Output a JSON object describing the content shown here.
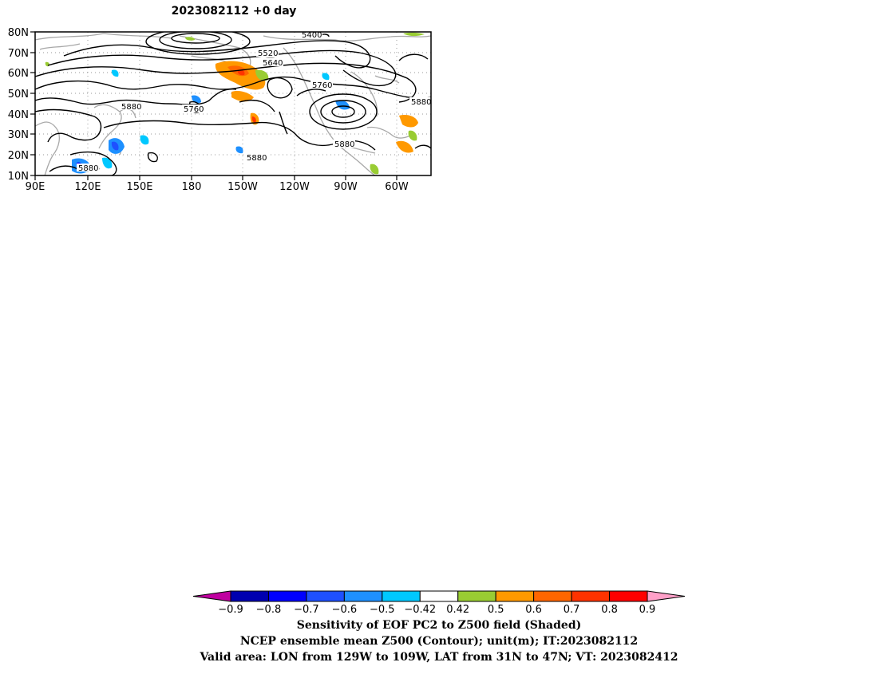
{
  "map": {
    "title": "2023082112 +0 day",
    "lat_labels": [
      "80N",
      "70N",
      "60N",
      "50N",
      "40N",
      "30N",
      "20N",
      "10N"
    ],
    "lon_labels": [
      "90E",
      "120E",
      "150E",
      "180",
      "150W",
      "120W",
      "90W",
      "60W"
    ],
    "contour_labels": [
      "5400",
      "5520",
      "5640",
      "5760",
      "5880",
      "5760",
      "5880",
      "5880",
      "5880",
      "5880"
    ],
    "coastline_color": "#a8a8a8",
    "contour_color": "#000000"
  },
  "colorbar": {
    "colors": [
      "#c000a0",
      "#0000b0",
      "#0000ff",
      "#1e50ff",
      "#1e90ff",
      "#00c8ff",
      "#ffffff",
      "#99cc33",
      "#ff9900",
      "#ff6600",
      "#ff3300",
      "#ff0000",
      "#ffa0c8"
    ],
    "ticks": [
      "−0.9",
      "−0.8",
      "−0.7",
      "−0.6",
      "−0.5",
      "−0.42",
      "0.42",
      "0.5",
      "0.6",
      "0.7",
      "0.8",
      "0.9"
    ]
  },
  "captions": {
    "line1": "Sensitivity of EOF PC2 to Z500 field (Shaded)",
    "line2": "NCEP ensemble mean Z500 (Contour); unit(m); IT:2023082112",
    "line3": "Valid area: LON from 129W to 109W, LAT from 31N to 47N; VT: 2023082412"
  }
}
